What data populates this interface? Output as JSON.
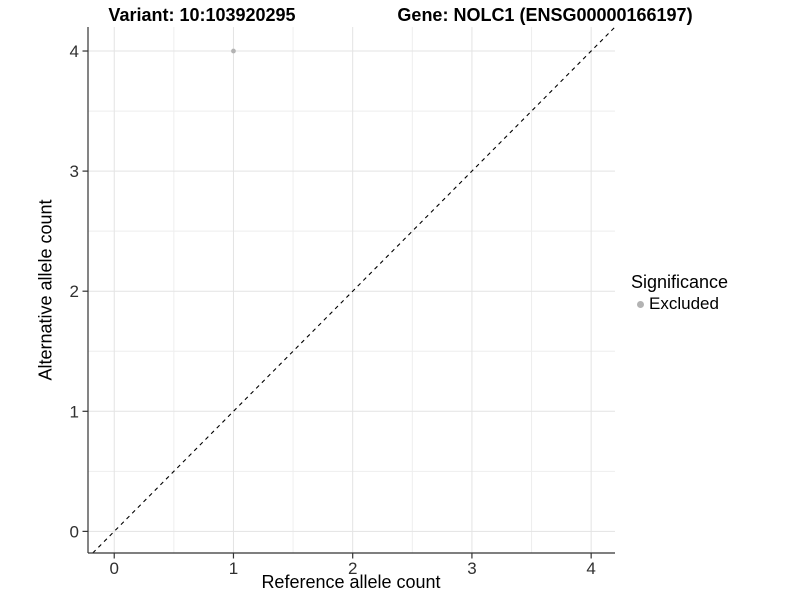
{
  "chart_data": {
    "type": "scatter",
    "title_left": "Variant: 10:103920295",
    "title_right": "Gene: NOLC1 (ENSG00000166197)",
    "xlabel": "Reference allele count",
    "ylabel": "Alternative allele count",
    "xlim": [
      -0.22,
      4.2
    ],
    "ylim": [
      -0.18,
      4.2
    ],
    "xticks": [
      0,
      1,
      2,
      3,
      4
    ],
    "yticks": [
      0,
      1,
      2,
      3,
      4
    ],
    "minor_step": 0.5,
    "grid": "major+minor",
    "legend_title": "Significance",
    "legend_position": "right",
    "series": [
      {
        "name": "Excluded",
        "color": "#b3b3b3",
        "points": [
          {
            "x": 1,
            "y": 4
          }
        ]
      }
    ],
    "reference_line": {
      "type": "identity",
      "slope": 1,
      "intercept": 0,
      "style": "dashed",
      "color": "#000000"
    }
  },
  "colors": {
    "background": "#ffffff",
    "grid_major": "#e3e3e3",
    "grid_minor": "#eeeeee",
    "axis_line": "#333333",
    "tick_text": "#303030",
    "point": "#b3b3b3"
  }
}
